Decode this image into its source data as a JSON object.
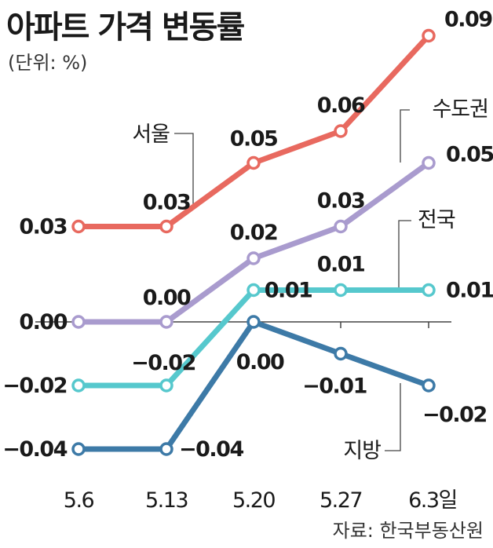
{
  "header": {
    "title": "아파트 가격 변동률",
    "unit": "(단위: %)"
  },
  "footer": {
    "source": "자료: 한국부동산원"
  },
  "chart_data": {
    "type": "line",
    "title": "아파트 가격 변동률",
    "xlabel": "",
    "ylabel": "",
    "categories": [
      "5.6",
      "5.13",
      "5.20",
      "5.27",
      "6.3일"
    ],
    "ylim": [
      -0.04,
      0.09
    ],
    "grid": false,
    "series": [
      {
        "name": "서울",
        "values": [
          0.03,
          0.03,
          0.05,
          0.06,
          0.09
        ],
        "labels": [
          "0.03",
          "0.03",
          "0.05",
          "0.06",
          "0.09"
        ],
        "color": "#e8695f"
      },
      {
        "name": "수도권",
        "values": [
          0.0,
          0.0,
          0.02,
          0.03,
          0.05
        ],
        "labels": [
          "0.00",
          "0.00",
          "0.02",
          "0.03",
          "0.05"
        ],
        "color": "#a99bce"
      },
      {
        "name": "전국",
        "values": [
          -0.02,
          -0.02,
          0.01,
          0.01,
          0.01
        ],
        "labels": [
          "−0.02",
          "−0.02",
          "0.01",
          "0.01",
          "0.01"
        ],
        "color": "#56c8cd"
      },
      {
        "name": "지방",
        "values": [
          -0.04,
          -0.04,
          0.0,
          -0.01,
          -0.02
        ],
        "labels": [
          "−0.04",
          "−0.04",
          "0.00",
          "−0.01",
          "−0.02"
        ],
        "color": "#3d7aa7"
      }
    ]
  }
}
